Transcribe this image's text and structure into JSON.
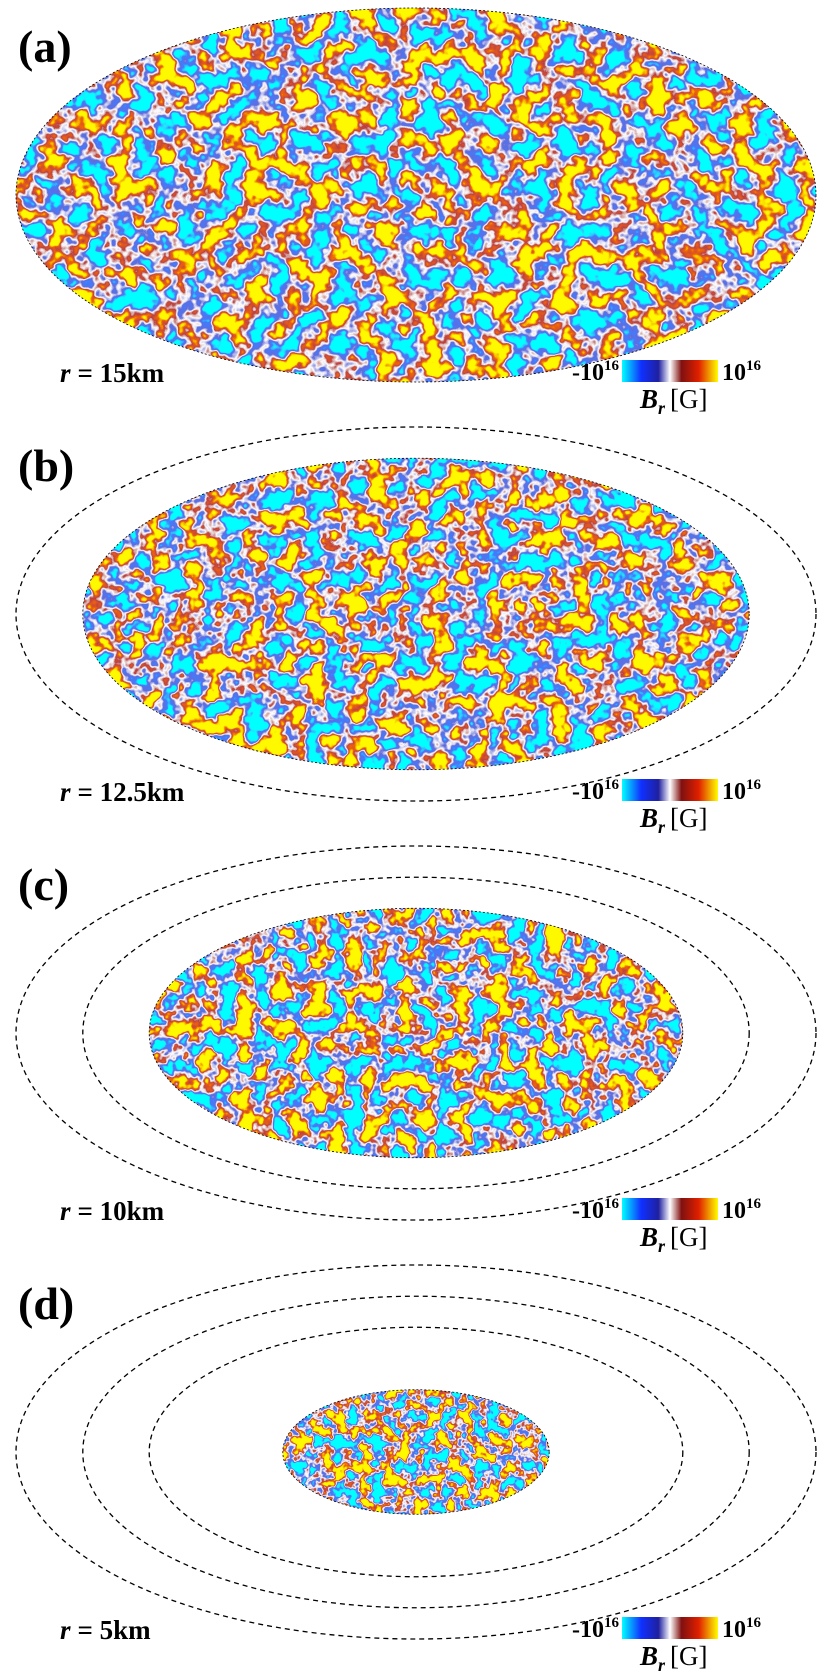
{
  "panels": [
    {
      "label": "(a)",
      "radius": {
        "var": "r",
        "text": "= 15km"
      },
      "colorbar": {
        "min": {
          "base": "-10",
          "exp": "16"
        },
        "max": {
          "base": "10",
          "exp": "16"
        },
        "quantity": "B",
        "sub": "r",
        "unit": "[G]"
      }
    },
    {
      "label": "(b)",
      "radius": {
        "var": "r",
        "text": "= 12.5km"
      },
      "colorbar": {
        "min": {
          "base": "-10",
          "exp": "16"
        },
        "max": {
          "base": "10",
          "exp": "16"
        },
        "quantity": "B",
        "sub": "r",
        "unit": "[G]"
      }
    },
    {
      "label": "(c)",
      "radius": {
        "var": "r",
        "text": "= 10km"
      },
      "colorbar": {
        "min": {
          "base": "-10",
          "exp": "16"
        },
        "max": {
          "base": "10",
          "exp": "16"
        },
        "quantity": "B",
        "sub": "r",
        "unit": "[G]"
      }
    },
    {
      "label": "(d)",
      "radius": {
        "var": "r",
        "text": "= 5km"
      },
      "colorbar": {
        "min": {
          "base": "-10",
          "exp": "16"
        },
        "max": {
          "base": "10",
          "exp": "16"
        },
        "quantity": "B",
        "sub": "r",
        "unit": "[G]"
      }
    }
  ]
}
